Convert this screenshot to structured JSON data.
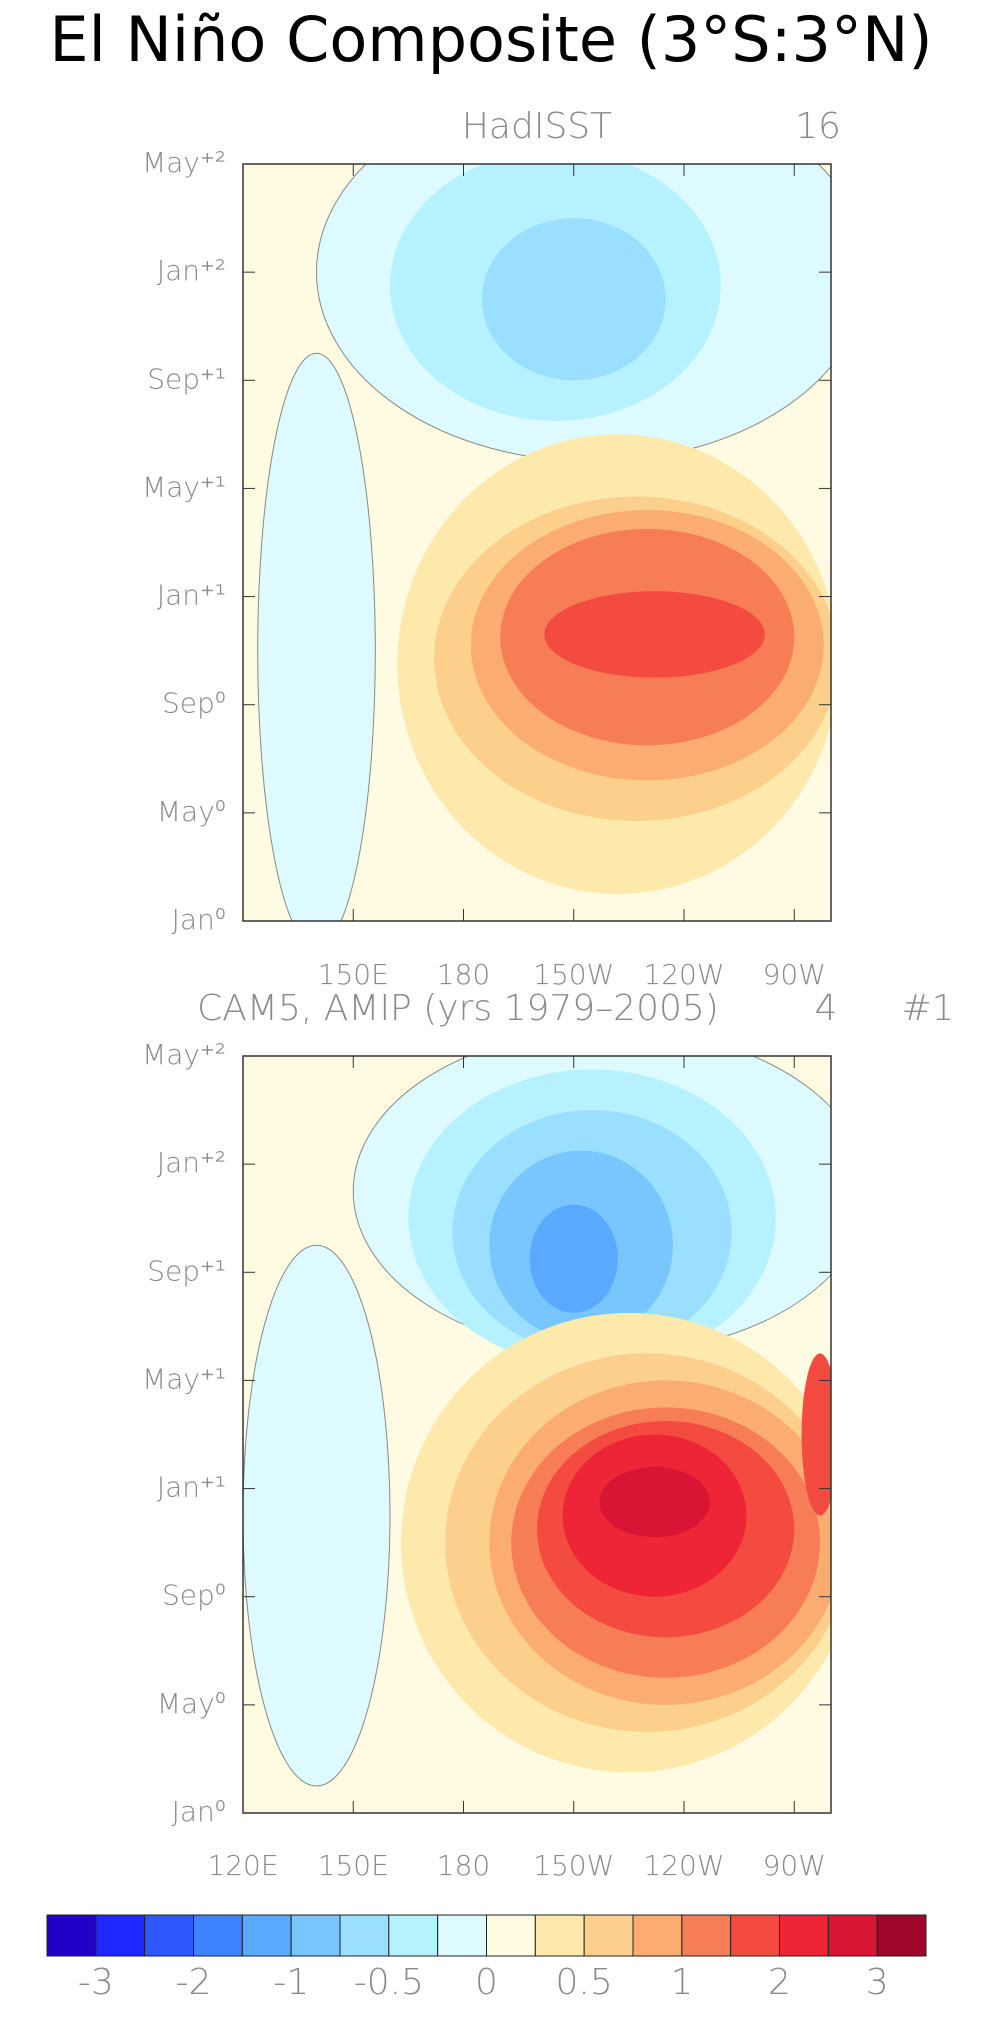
{
  "title": "El Niño Composite (3°S:3°N)",
  "colorbar": {
    "levels": [
      -3,
      -2.5,
      -2,
      -1.5,
      -1,
      -0.75,
      -0.5,
      -0.25,
      0,
      0.25,
      0.5,
      0.75,
      1,
      1.5,
      2,
      2.5,
      3
    ],
    "colors": [
      "#2200c8",
      "#1e28ff",
      "#2f58ff",
      "#3d82ff",
      "#59a9ff",
      "#79c6ff",
      "#9adfff",
      "#b6f1ff",
      "#ddfbff",
      "#fffbe2",
      "#fde9ab",
      "#fcd08c",
      "#fbac70",
      "#f77d56",
      "#f44b40",
      "#ee2536",
      "#d81535",
      "#a1052b"
    ],
    "ticks": [
      -3,
      -2,
      -1,
      -0.5,
      0,
      0.5,
      1,
      2,
      3
    ]
  },
  "chart_data": [
    {
      "type": "contour",
      "title": "HadISST",
      "annotations": [
        "16"
      ],
      "xlim": [
        120,
        280
      ],
      "xticks": [
        {
          "value": 150,
          "label": "150E"
        },
        180,
        {
          "value": 210,
          "label": "150W"
        },
        {
          "value": 240,
          "label": "120W"
        },
        {
          "value": 270,
          "label": "90W"
        }
      ],
      "ylim": [
        0,
        28
      ],
      "yticks": [
        {
          "value": 0,
          "label": "Jan⁰"
        },
        {
          "value": 4,
          "label": "May⁰"
        },
        {
          "value": 8,
          "label": "Sep⁰"
        },
        {
          "value": 12,
          "label": "Jan⁺¹"
        },
        {
          "value": 16,
          "label": "May⁺¹"
        },
        {
          "value": 20,
          "label": "Sep⁺¹"
        },
        {
          "value": 24,
          "label": "Jan⁺²"
        },
        {
          "value": 28,
          "label": "May⁺²"
        }
      ]
    },
    {
      "type": "contour",
      "title": "CAM5, AMIP (yrs 1979–2005)",
      "annotations": [
        "4",
        "#1"
      ],
      "xlim": [
        120,
        280
      ],
      "xticks": [
        {
          "value": 120,
          "label": "120E"
        },
        {
          "value": 150,
          "label": "150E"
        },
        180,
        {
          "value": 210,
          "label": "150W"
        },
        {
          "value": 240,
          "label": "120W"
        },
        {
          "value": 270,
          "label": "90W"
        }
      ],
      "ylim": [
        0,
        28
      ],
      "yticks": [
        {
          "value": 0,
          "label": "Jan⁰"
        },
        {
          "value": 4,
          "label": "May⁰"
        },
        {
          "value": 8,
          "label": "Sep⁰"
        },
        {
          "value": 12,
          "label": "Jan⁺¹"
        },
        {
          "value": 16,
          "label": "May⁺¹"
        },
        {
          "value": 20,
          "label": "Sep⁺¹"
        },
        {
          "value": 24,
          "label": "Jan⁺²"
        },
        {
          "value": 28,
          "label": "May⁺²"
        }
      ]
    }
  ]
}
